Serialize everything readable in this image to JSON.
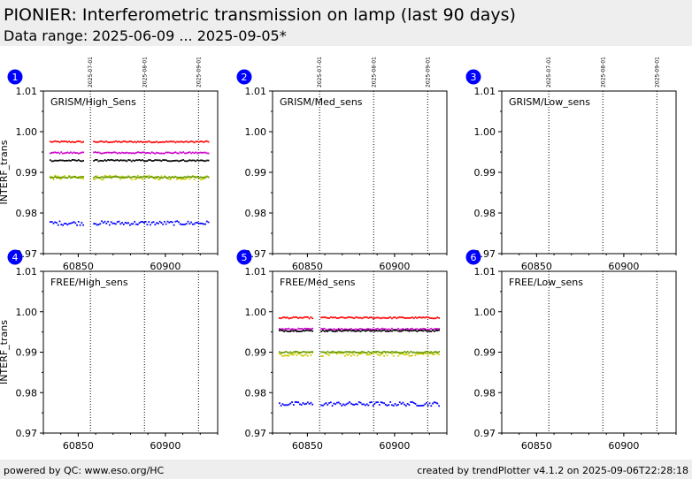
{
  "header": {
    "title": "PIONIER: Interferometric transmission on lamp (last 90 days)",
    "subtitle": "Data range: 2025-06-09 ... 2025-09-05*"
  },
  "footer": {
    "left": "powered by QC: www.eso.org/HC",
    "right": "created by trendPlotter v4.1.2 on 2025-09-06T22:28:18"
  },
  "colors": {
    "red": "#ff0000",
    "magenta": "#cc00cc",
    "black": "#000000",
    "olive": "#669900",
    "yellow": "#cccc00",
    "blue": "#0000ff",
    "badge": "#0000ff"
  },
  "chart_data": [
    {
      "type": "scatter",
      "panel": "1",
      "title": "GRISM/High_Sens",
      "ylabel": "INTERF_trans",
      "xlim": [
        60830,
        60930
      ],
      "ylim": [
        0.97,
        1.01
      ],
      "xticks": [
        60850,
        60900
      ],
      "yticks": [
        "0.97",
        "0.98",
        "0.99",
        "1.00",
        "1.01"
      ],
      "date_markers": [
        {
          "x": 60857,
          "label": "2025-07-01"
        },
        {
          "x": 60888,
          "label": "2025-08-01"
        },
        {
          "x": 60919,
          "label": "2025-09-01"
        }
      ],
      "x_segments": [
        [
          60834,
          60853
        ],
        [
          60859,
          60925
        ]
      ],
      "series": [
        {
          "color": "red",
          "y": 0.9975
        },
        {
          "color": "magenta",
          "y": 0.9948
        },
        {
          "color": "black",
          "y": 0.9929
        },
        {
          "color": "yellow",
          "y": 0.9887
        },
        {
          "color": "olive",
          "y": 0.9888
        },
        {
          "color": "blue",
          "y": 0.9775
        }
      ]
    },
    {
      "type": "scatter",
      "panel": "2",
      "title": "GRISM/Med_sens",
      "ylabel": "",
      "xlim": [
        60830,
        60930
      ],
      "ylim": [
        0.97,
        1.01
      ],
      "xticks": [
        60850,
        60900
      ],
      "yticks": [
        "0.97",
        "0.98",
        "0.99",
        "1.00",
        "1.01"
      ],
      "date_markers": [
        {
          "x": 60857,
          "label": "2025-07-01"
        },
        {
          "x": 60888,
          "label": "2025-08-01"
        },
        {
          "x": 60919,
          "label": "2025-09-01"
        }
      ],
      "x_segments": [],
      "series": []
    },
    {
      "type": "scatter",
      "panel": "3",
      "title": "GRISM/Low_sens",
      "ylabel": "",
      "xlim": [
        60830,
        60930
      ],
      "ylim": [
        0.97,
        1.01
      ],
      "xticks": [
        60850,
        60900
      ],
      "yticks": [
        "0.97",
        "0.98",
        "0.99",
        "1.00",
        "1.01"
      ],
      "date_markers": [
        {
          "x": 60857,
          "label": "2025-07-01"
        },
        {
          "x": 60888,
          "label": "2025-08-01"
        },
        {
          "x": 60919,
          "label": "2025-09-01"
        }
      ],
      "x_segments": [],
      "series": []
    },
    {
      "type": "scatter",
      "panel": "4",
      "title": "FREE/High_sens",
      "ylabel": "INTERF_trans",
      "xlim": [
        60830,
        60930
      ],
      "ylim": [
        0.97,
        1.01
      ],
      "xticks": [
        60850,
        60900
      ],
      "yticks": [
        "0.97",
        "0.98",
        "0.99",
        "1.00",
        "1.01"
      ],
      "date_markers": [
        {
          "x": 60857,
          "label": ""
        },
        {
          "x": 60888,
          "label": ""
        },
        {
          "x": 60919,
          "label": ""
        }
      ],
      "x_segments": [],
      "series": []
    },
    {
      "type": "scatter",
      "panel": "5",
      "title": "FREE/Med_sens",
      "ylabel": "",
      "xlim": [
        60830,
        60930
      ],
      "ylim": [
        0.97,
        1.01
      ],
      "xticks": [
        60850,
        60900
      ],
      "yticks": [
        "0.97",
        "0.98",
        "0.99",
        "1.00",
        "1.01"
      ],
      "date_markers": [
        {
          "x": 60857,
          "label": ""
        },
        {
          "x": 60888,
          "label": ""
        },
        {
          "x": 60919,
          "label": ""
        }
      ],
      "x_segments": [
        [
          60834,
          60853
        ],
        [
          60858,
          60926
        ]
      ],
      "series": [
        {
          "color": "red",
          "y": 0.9985
        },
        {
          "color": "magenta",
          "y": 0.9957
        },
        {
          "color": "black",
          "y": 0.9953
        },
        {
          "color": "yellow",
          "y": 0.9895
        },
        {
          "color": "olive",
          "y": 0.99
        },
        {
          "color": "blue",
          "y": 0.9772
        }
      ]
    },
    {
      "type": "scatter",
      "panel": "6",
      "title": "FREE/Low_sens",
      "ylabel": "",
      "xlim": [
        60830,
        60930
      ],
      "ylim": [
        0.97,
        1.01
      ],
      "xticks": [
        60850,
        60900
      ],
      "yticks": [
        "0.97",
        "0.98",
        "0.99",
        "1.00",
        "1.01"
      ],
      "date_markers": [
        {
          "x": 60857,
          "label": ""
        },
        {
          "x": 60888,
          "label": ""
        },
        {
          "x": 60919,
          "label": ""
        }
      ],
      "x_segments": [],
      "series": []
    }
  ]
}
